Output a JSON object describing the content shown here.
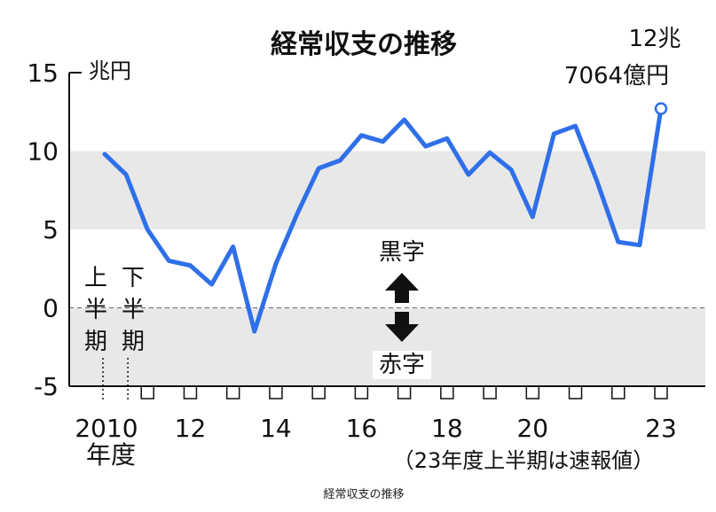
{
  "chart_data": {
    "type": "line",
    "title": "経常収支の推移",
    "unit": "兆円",
    "yticks": [
      "15",
      "10",
      "5",
      "0",
      "-5"
    ],
    "ylim": [
      -5,
      15
    ],
    "xticks": [
      {
        "label": "2010",
        "x": 2010
      },
      {
        "label": "12",
        "x": 2012
      },
      {
        "label": "14",
        "x": 2014
      },
      {
        "label": "16",
        "x": 2016
      },
      {
        "label": "18",
        "x": 2018
      },
      {
        "label": "20",
        "x": 2020
      },
      {
        "label": "23",
        "x": 2023
      }
    ],
    "xlabel": "年度",
    "series": [
      {
        "color": "#2f6fe8",
        "points": [
          {
            "x": 2010.0,
            "y": 9.8
          },
          {
            "x": 2010.5,
            "y": 8.5
          },
          {
            "x": 2011.0,
            "y": 5.0
          },
          {
            "x": 2011.5,
            "y": 3.0
          },
          {
            "x": 2012.0,
            "y": 2.7
          },
          {
            "x": 2012.5,
            "y": 1.5
          },
          {
            "x": 2013.0,
            "y": 3.9
          },
          {
            "x": 2013.5,
            "y": -1.5
          },
          {
            "x": 2014.0,
            "y": 2.8
          },
          {
            "x": 2014.5,
            "y": 6.0
          },
          {
            "x": 2015.0,
            "y": 8.9
          },
          {
            "x": 2015.5,
            "y": 9.4
          },
          {
            "x": 2016.0,
            "y": 11.0
          },
          {
            "x": 2016.5,
            "y": 10.6
          },
          {
            "x": 2017.0,
            "y": 12.0
          },
          {
            "x": 2017.5,
            "y": 10.3
          },
          {
            "x": 2018.0,
            "y": 10.8
          },
          {
            "x": 2018.5,
            "y": 8.5
          },
          {
            "x": 2019.0,
            "y": 9.9
          },
          {
            "x": 2019.5,
            "y": 8.8
          },
          {
            "x": 2020.0,
            "y": 5.8
          },
          {
            "x": 2020.5,
            "y": 11.1
          },
          {
            "x": 2021.0,
            "y": 11.6
          },
          {
            "x": 2021.5,
            "y": 8.1
          },
          {
            "x": 2022.0,
            "y": 4.2
          },
          {
            "x": 2022.5,
            "y": 4.0
          },
          {
            "x": 2023.0,
            "y": 12.7064
          }
        ]
      }
    ],
    "latest_label_line1": "12兆",
    "latest_label_line2": "7064億円",
    "note": "（23年度上半期は速報値）",
    "surplus_label": "黒字",
    "deficit_label": "赤字",
    "first_half_label": [
      "上",
      "半",
      "期"
    ],
    "second_half_label": [
      "下",
      "半",
      "期"
    ],
    "shaded_bands": [
      [
        5,
        10
      ],
      [
        -5,
        0
      ]
    ],
    "grid": false
  },
  "caption": "経常収支の推移"
}
